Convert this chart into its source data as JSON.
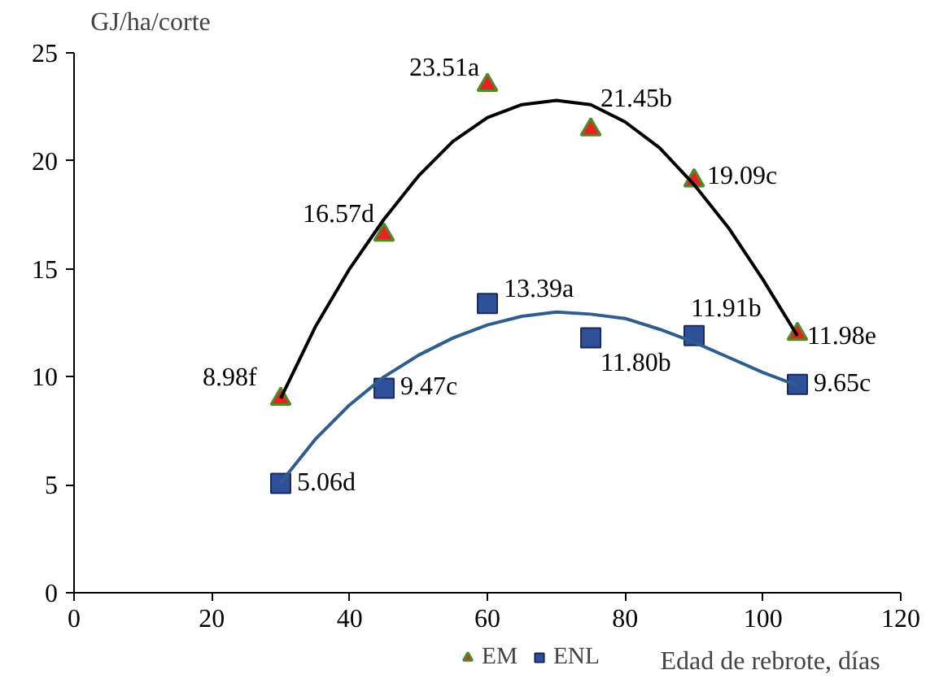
{
  "chart_data": {
    "type": "scatter",
    "xlabel": "Edad de rebrote, días",
    "ylabel": "GJ/ha/corte",
    "xlim": [
      0,
      120
    ],
    "ylim": [
      0,
      25
    ],
    "xticks": [
      0,
      20,
      40,
      60,
      80,
      100,
      120
    ],
    "yticks": [
      0,
      5,
      10,
      15,
      20,
      25
    ],
    "grid": false,
    "legend": "bottom",
    "x": [
      30,
      45,
      60,
      75,
      90,
      105
    ],
    "series": [
      {
        "name": "EM",
        "color": "#e8231f",
        "marker": "triangle",
        "values": [
          8.98,
          16.57,
          23.51,
          21.45,
          19.09,
          11.98
        ],
        "value_labels": [
          "8.98f",
          "16.57d",
          "23.51a",
          "21.45b",
          "19.09c",
          "11.98e"
        ]
      },
      {
        "name": "ENL",
        "color": "#2f4f9a",
        "marker": "square",
        "values": [
          5.06,
          9.47,
          13.39,
          11.8,
          11.91,
          9.65
        ],
        "value_labels": [
          "5.06d",
          "9.47c",
          "13.39a",
          "11.80b",
          "11.91b",
          "9.65c"
        ]
      },
      {
        "type": "line",
        "color": "#000000",
        "x": [
          30,
          35,
          40,
          45,
          50,
          55,
          60,
          65,
          70,
          75,
          80,
          85,
          90,
          95,
          100,
          105
        ],
        "values": [
          9.0,
          12.3,
          15.0,
          17.3,
          19.3,
          20.9,
          22.0,
          22.6,
          22.8,
          22.6,
          21.8,
          20.6,
          18.9,
          16.9,
          14.5,
          11.9
        ]
      },
      {
        "type": "line",
        "color": "#2e5e8e",
        "x": [
          30,
          35,
          40,
          45,
          50,
          55,
          60,
          65,
          70,
          75,
          80,
          85,
          90,
          95,
          100,
          105
        ],
        "values": [
          5.1,
          7.1,
          8.7,
          10.0,
          11.0,
          11.8,
          12.4,
          12.8,
          13.0,
          12.9,
          12.7,
          12.2,
          11.6,
          10.9,
          10.2,
          9.6
        ]
      }
    ]
  }
}
